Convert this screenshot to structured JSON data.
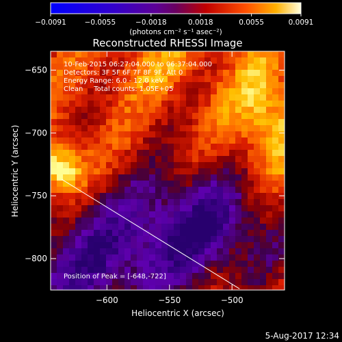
{
  "colorbar": {
    "ticks": [
      {
        "value": -0.0091,
        "label": "−0.0091"
      },
      {
        "value": -0.0055,
        "label": "−0.0055"
      },
      {
        "value": -0.0018,
        "label": "−0.0018"
      },
      {
        "value": 0.0018,
        "label": "0.0018"
      },
      {
        "value": 0.0055,
        "label": "0.0055"
      },
      {
        "value": 0.0091,
        "label": "0.0091"
      }
    ],
    "range": [
      -0.0091,
      0.0091
    ],
    "units_label": "(photons cm⁻² s⁻¹ asec⁻²)"
  },
  "chart_data": {
    "type": "heatmap",
    "title": "Reconstructed RHESSI Image",
    "xlabel": "Heliocentric X (arcsec)",
    "ylabel": "Heliocentric Y (arcsec)",
    "xlim": [
      -645,
      -458
    ],
    "ylim": [
      -825,
      -635
    ],
    "xticks": [
      {
        "value": -600,
        "label": "−600"
      },
      {
        "value": -550,
        "label": "−550"
      },
      {
        "value": -500,
        "label": "−500"
      }
    ],
    "yticks": [
      {
        "value": -650,
        "label": "−650"
      },
      {
        "value": -700,
        "label": "−700"
      },
      {
        "value": -750,
        "label": "−750"
      },
      {
        "value": -800,
        "label": "−800"
      }
    ],
    "annotations": [
      "10-Feb-2015 06:27:04.000 to 06:37:04.000",
      "Detectors: 3F 5F 6F 7F 8F 9F, Att 0",
      "Energy Range: 6.0 - 12.0 keV",
      "Clean     Total counts: 1.05E+05"
    ],
    "peak_label": "Position of Peak = [-648,-722]",
    "peak": {
      "x": -648,
      "y": -722
    },
    "limb_line": [
      {
        "x": -636,
        "y": -737
      },
      {
        "x": -494,
        "y": -824
      }
    ],
    "colors": {
      "low": "#0000ff",
      "mid": "#660099",
      "high": "#ffff80"
    }
  },
  "footer": {
    "timestamp": "5-Aug-2017 12:34"
  }
}
